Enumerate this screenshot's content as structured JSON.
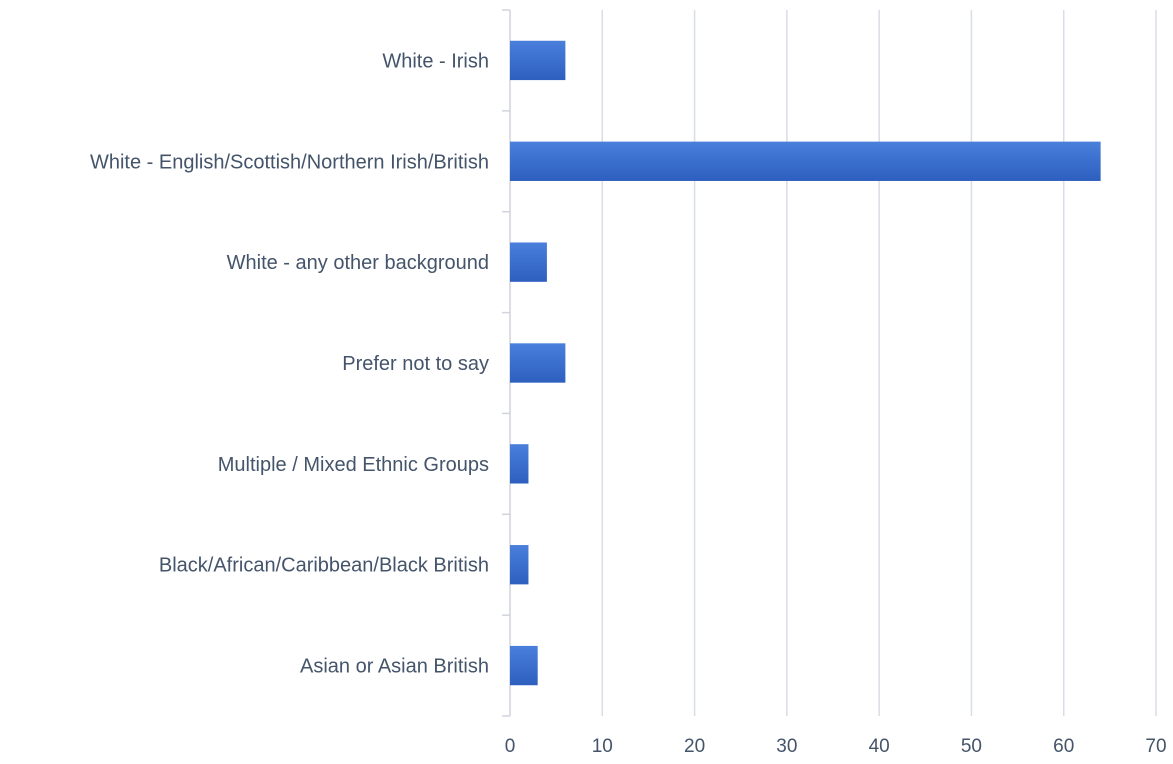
{
  "chart_data": {
    "type": "bar",
    "orientation": "horizontal",
    "categories": [
      "White - Irish",
      "White - English/Scottish/Northern Irish/British",
      "White - any other background",
      "Prefer not to say",
      "Multiple / Mixed Ethnic Groups",
      "Black/African/Caribbean/Black British",
      "Asian or Asian British"
    ],
    "values": [
      6,
      64,
      4,
      6,
      2,
      2,
      3
    ],
    "xlim": [
      0,
      70
    ],
    "x_ticks": [
      0,
      10,
      20,
      30,
      40,
      50,
      60,
      70
    ],
    "grid": "vertical",
    "legend": "none",
    "colors": {
      "bar_top": "#4a7fdc",
      "bar_bottom": "#2d5fbf",
      "grid": "#d9dde5",
      "axis": "#d0d4dc",
      "text": "#44546a"
    }
  }
}
